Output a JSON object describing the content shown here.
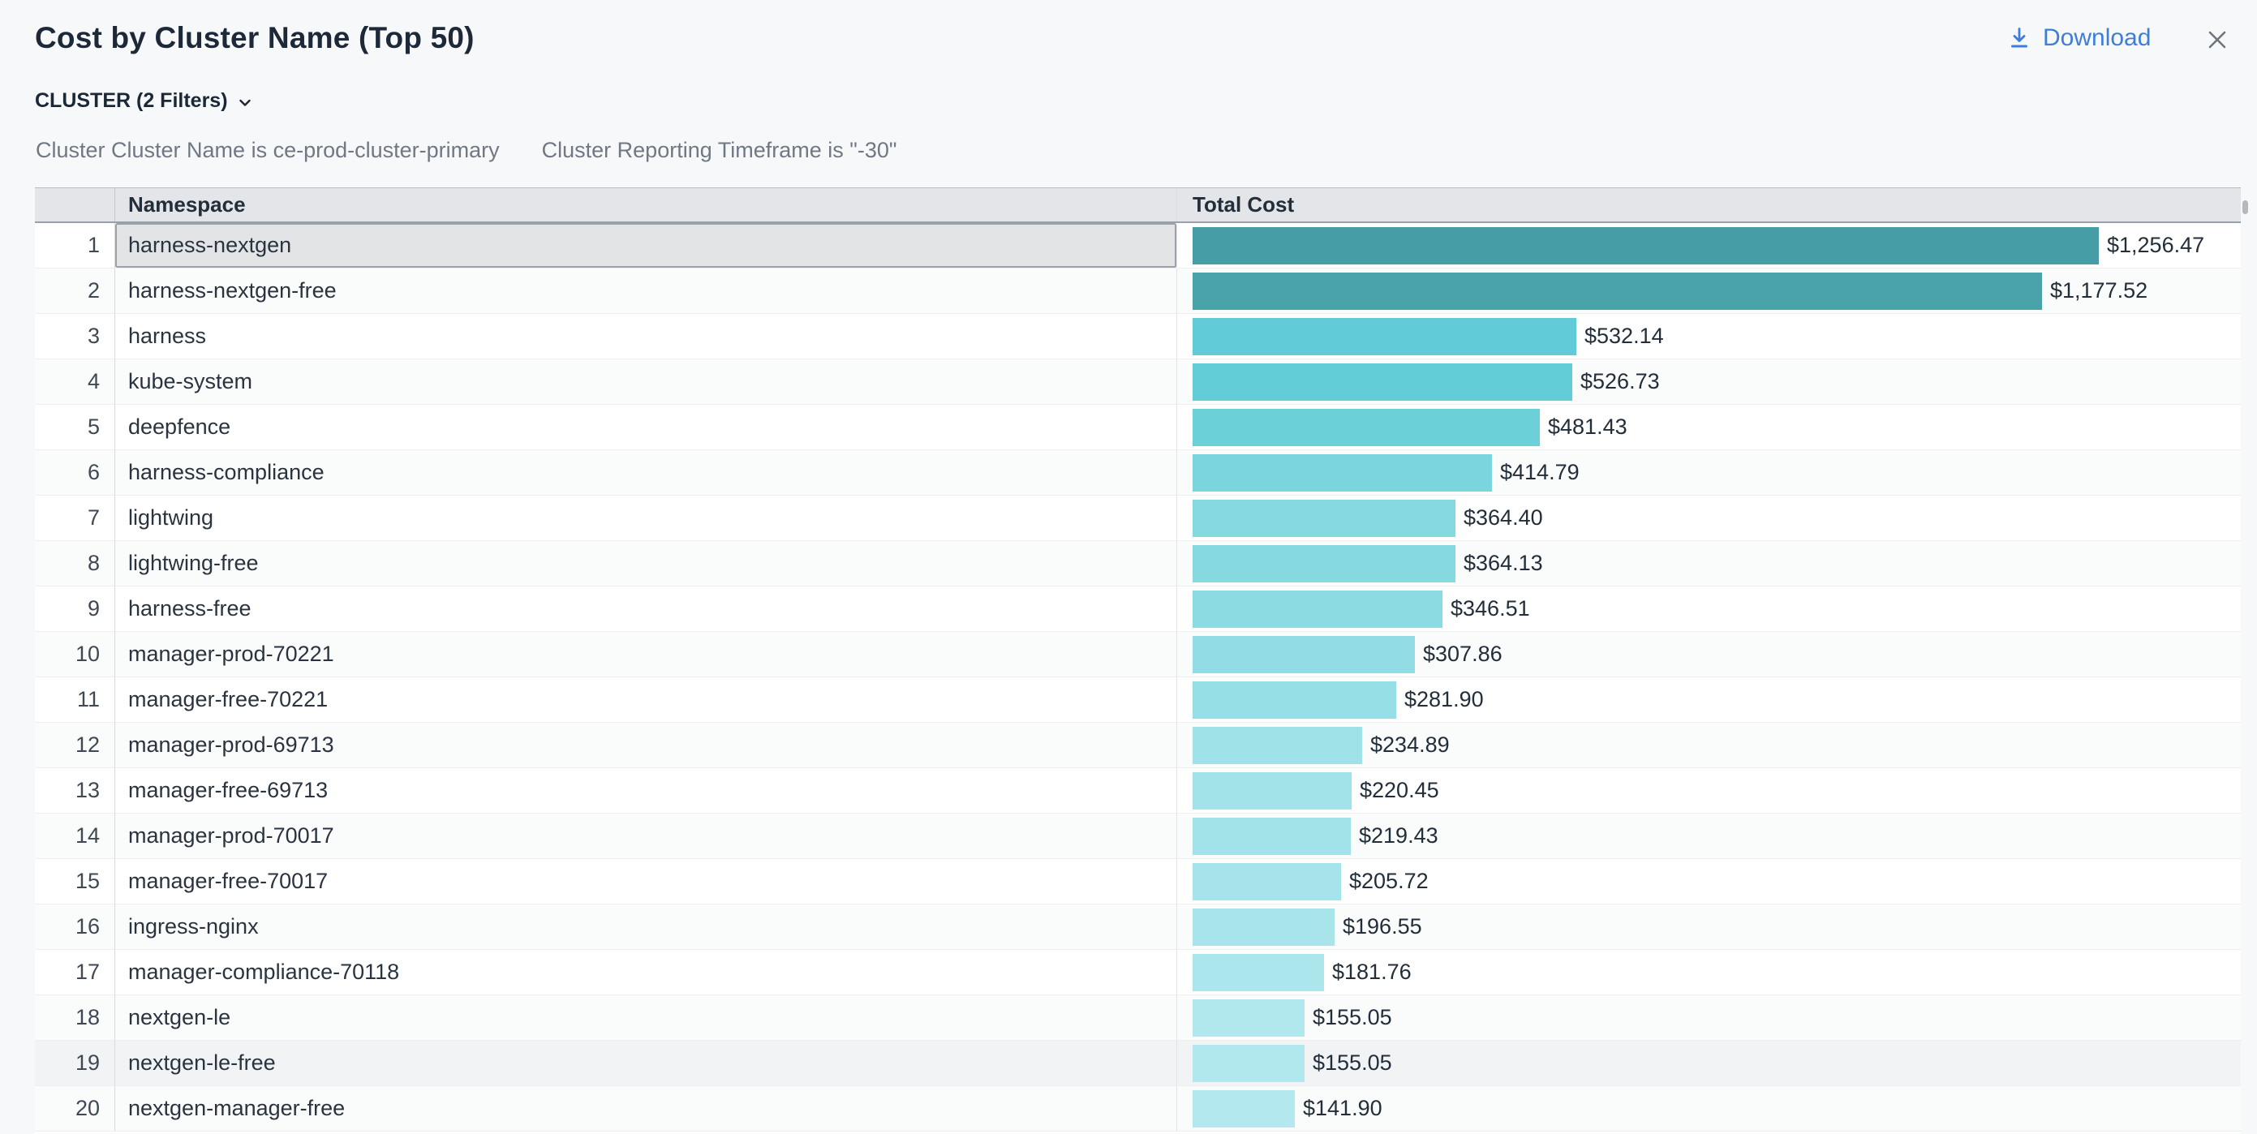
{
  "dialog": {
    "title": "Cost by Cluster Name (Top 50)",
    "download_label": "Download",
    "close_icon": "close-x"
  },
  "filters": {
    "group_label": "CLUSTER (2 Filters)",
    "chevron_icon": "chevron-down",
    "applied": [
      "Cluster Cluster Name is ce-prod-cluster-primary",
      "Cluster Reporting Timeframe is \"-30\""
    ]
  },
  "table": {
    "columns": [
      "Namespace",
      "Total Cost"
    ],
    "max_value": 1256.47,
    "rows": [
      {
        "rank": "1",
        "namespace": "harness-nextgen",
        "cost": "$1,256.47",
        "value": 1256.47,
        "bar_color": "#479da5",
        "selected": true
      },
      {
        "rank": "2",
        "namespace": "harness-nextgen-free",
        "cost": "$1,177.52",
        "value": 1177.52,
        "bar_color": "#4aa2aa"
      },
      {
        "rank": "3",
        "namespace": "harness",
        "cost": "$532.14",
        "value": 532.14,
        "bar_color": "#61ccd7"
      },
      {
        "rank": "4",
        "namespace": "kube-system",
        "cost": "$526.73",
        "value": 526.73,
        "bar_color": "#62ccd7"
      },
      {
        "rank": "5",
        "namespace": "deepfence",
        "cost": "$481.43",
        "value": 481.43,
        "bar_color": "#6cd0d9"
      },
      {
        "rank": "6",
        "namespace": "harness-compliance",
        "cost": "$414.79",
        "value": 414.79,
        "bar_color": "#7bd5de"
      },
      {
        "rank": "7",
        "namespace": "lightwing",
        "cost": "$364.40",
        "value": 364.4,
        "bar_color": "#87d9e1"
      },
      {
        "rank": "8",
        "namespace": "lightwing-free",
        "cost": "$364.13",
        "value": 364.13,
        "bar_color": "#87d9e1"
      },
      {
        "rank": "9",
        "namespace": "harness-free",
        "cost": "$346.51",
        "value": 346.51,
        "bar_color": "#8bdbe2"
      },
      {
        "rank": "10",
        "namespace": "manager-prod-70221",
        "cost": "$307.86",
        "value": 307.86,
        "bar_color": "#92dde5"
      },
      {
        "rank": "11",
        "namespace": "manager-free-70221",
        "cost": "$281.90",
        "value": 281.9,
        "bar_color": "#97dfe6"
      },
      {
        "rank": "12",
        "namespace": "manager-prod-69713",
        "cost": "$234.89",
        "value": 234.89,
        "bar_color": "#9fe2e8"
      },
      {
        "rank": "13",
        "namespace": "manager-free-69713",
        "cost": "$220.45",
        "value": 220.45,
        "bar_color": "#a2e3e9"
      },
      {
        "rank": "14",
        "namespace": "manager-prod-70017",
        "cost": "$219.43",
        "value": 219.43,
        "bar_color": "#a2e3e9"
      },
      {
        "rank": "15",
        "namespace": "manager-free-70017",
        "cost": "$205.72",
        "value": 205.72,
        "bar_color": "#a5e4ea"
      },
      {
        "rank": "16",
        "namespace": "ingress-nginx",
        "cost": "$196.55",
        "value": 196.55,
        "bar_color": "#a7e5ea"
      },
      {
        "rank": "17",
        "namespace": "manager-compliance-70118",
        "cost": "$181.76",
        "value": 181.76,
        "bar_color": "#aae6eb"
      },
      {
        "rank": "18",
        "namespace": "nextgen-le",
        "cost": "$155.05",
        "value": 155.05,
        "bar_color": "#b0e8ed"
      },
      {
        "rank": "19",
        "namespace": "nextgen-le-free",
        "cost": "$155.05",
        "value": 155.05,
        "bar_color": "#b0e8ed",
        "hovered": true
      },
      {
        "rank": "20",
        "namespace": "nextgen-manager-free",
        "cost": "$141.90",
        "value": 141.9,
        "bar_color": "#b3e9ee"
      }
    ]
  },
  "colors": {
    "accent_blue": "#3e7eda",
    "title_text": "#1d2939",
    "muted_text": "#6f7883",
    "header_bg": "#e3e5e8",
    "selected_cell_bg": "#e3e4e6",
    "selected_cell_border": "#9ba1a8",
    "hovered_row_bg": "#f1f3f5",
    "zebra_row_bg": "#fafbfb",
    "page_bg": "#f7f8fa",
    "bar_dark": "#479da5",
    "bar_light": "#b3e9ee"
  }
}
